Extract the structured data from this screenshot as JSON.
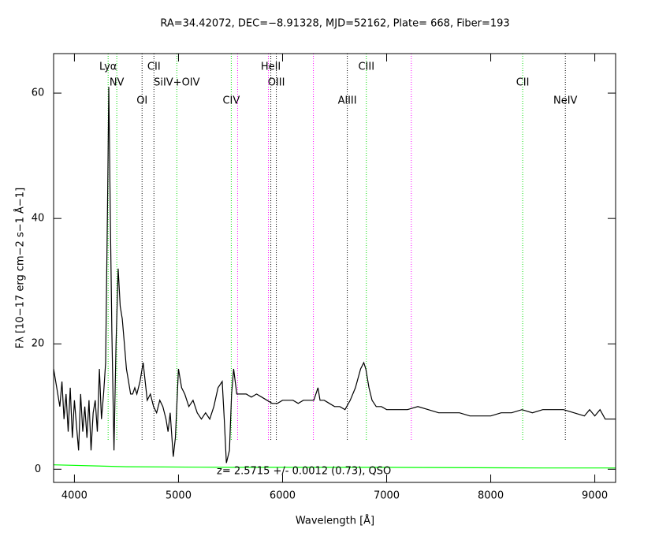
{
  "chart_data": {
    "type": "line",
    "title": "RA=34.42072, DEC=−8.91328, MJD=52162, Plate= 668, Fiber=193",
    "x_label": "Wavelength [Å]",
    "y_label": "Fλ [10−17 erg cm−2 s−1 Å−1]",
    "annotation": "z= 2.5715 +/- 0.0012 (0.73), QSO",
    "xlim": [
      3800,
      9200
    ],
    "ylim": [
      -2.1,
      66.3
    ],
    "xticks": [
      4000,
      5000,
      6000,
      7000,
      8000,
      9000
    ],
    "yticks": [
      0,
      20,
      40,
      60
    ],
    "series": [
      {
        "color": "#000000",
        "x": [
          3800,
          3830,
          3860,
          3880,
          3900,
          3920,
          3940,
          3960,
          3980,
          4000,
          4020,
          4040,
          4060,
          4080,
          4100,
          4120,
          4140,
          4160,
          4180,
          4200,
          4220,
          4240,
          4260,
          4280,
          4300,
          4320,
          4330,
          4345,
          4360,
          4380,
          4400,
          4420,
          4440,
          4460,
          4480,
          4500,
          4520,
          4540,
          4560,
          4580,
          4600,
          4630,
          4660,
          4680,
          4700,
          4730,
          4760,
          4790,
          4820,
          4850,
          4880,
          4900,
          4920,
          4950,
          4970,
          5000,
          5030,
          5060,
          5100,
          5140,
          5180,
          5220,
          5260,
          5300,
          5340,
          5380,
          5420,
          5440,
          5460,
          5490,
          5510,
          5530,
          5560,
          5600,
          5650,
          5700,
          5750,
          5800,
          5850,
          5900,
          5950,
          6000,
          6050,
          6100,
          6150,
          6200,
          6250,
          6300,
          6340,
          6360,
          6400,
          6450,
          6500,
          6550,
          6600,
          6650,
          6700,
          6750,
          6780,
          6800,
          6830,
          6860,
          6900,
          6950,
          7000,
          7100,
          7200,
          7300,
          7400,
          7500,
          7600,
          7700,
          7800,
          7900,
          8000,
          8100,
          8200,
          8300,
          8400,
          8500,
          8600,
          8700,
          8800,
          8900,
          8950,
          9000,
          9050,
          9100,
          9200
        ],
        "values": [
          16,
          13,
          10,
          14,
          8,
          12,
          6,
          13,
          5,
          11,
          7,
          3,
          12,
          6,
          10,
          5,
          11,
          3,
          9,
          11,
          6,
          16,
          8,
          12,
          17,
          45,
          61,
          40,
          22,
          3,
          20,
          32,
          26,
          24,
          20,
          16,
          14,
          12,
          12,
          13,
          12,
          14,
          17,
          14,
          11,
          12,
          10,
          9,
          11,
          10,
          8,
          6,
          9,
          2,
          5,
          16,
          13,
          12,
          10,
          11,
          9,
          8,
          9,
          8,
          10,
          13,
          14,
          8,
          1,
          3,
          12,
          16,
          12,
          12,
          12,
          11.5,
          12,
          11.5,
          11,
          10.5,
          10.5,
          11,
          11,
          11,
          10.5,
          11,
          11,
          11,
          13,
          11,
          11,
          10.5,
          10,
          10,
          9.5,
          11,
          13,
          16,
          17,
          16,
          13,
          11,
          10,
          10,
          9.5,
          9.5,
          9.5,
          10,
          9.5,
          9,
          9,
          9,
          8.5,
          8.5,
          8.5,
          9,
          9,
          9.5,
          9,
          9.5,
          9.5,
          9.5,
          9,
          8.5,
          9.5,
          8.5,
          9.5,
          8,
          8
        ]
      },
      {
        "color": "#00ff00",
        "x": [
          3800,
          4500,
          5500,
          7000,
          8500,
          9200
        ],
        "values": [
          0.7,
          0.4,
          0.3,
          0.3,
          0.2,
          0.2
        ]
      }
    ],
    "lines": [
      {
        "label": "Lyα",
        "wavelength": 4324,
        "color": "#00dd00"
      },
      {
        "label": "NV",
        "wavelength": 4407,
        "color": "#00dd00"
      },
      {
        "label": "OI",
        "wavelength": 4650,
        "color": "#000000"
      },
      {
        "label": "CII",
        "wavelength": 4764,
        "color": "#000000"
      },
      {
        "label": "SiIV+OIV",
        "wavelength": 4984,
        "color": "#00dd00"
      },
      {
        "label": "CIV",
        "wavelength": 5507,
        "color": "#00dd00"
      },
      {
        "label": "HeII",
        "wavelength": 5887,
        "color": "#000000"
      },
      {
        "label": "OIII",
        "wavelength": 5940,
        "color": "#000000"
      },
      {
        "label": "AlIII",
        "wavelength": 6622,
        "color": "#000000"
      },
      {
        "label": "CIII",
        "wavelength": 6805,
        "color": "#00dd00"
      },
      {
        "label": "CII",
        "wavelength": 8307,
        "color": "#00dd00"
      },
      {
        "label": "NeIV",
        "wavelength": 8717,
        "color": "#000000"
      }
    ],
    "sky_lines": {
      "color": "#ff00ff",
      "wavelengths": [
        5568,
        5864,
        6296,
        7237
      ]
    }
  }
}
